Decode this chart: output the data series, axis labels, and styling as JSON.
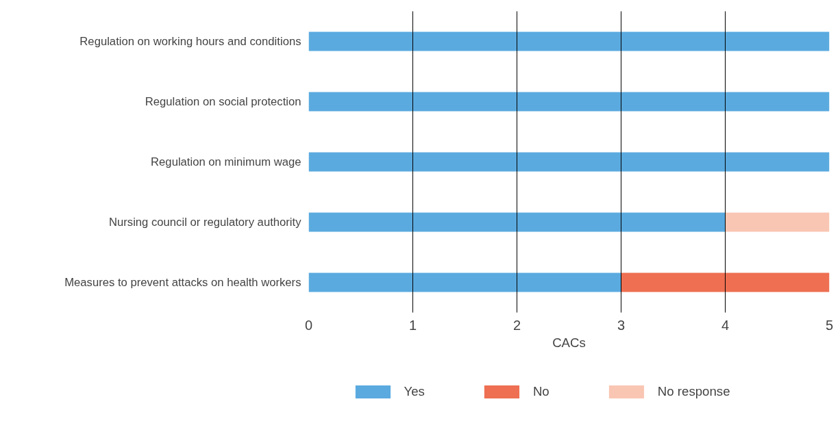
{
  "chart_data": {
    "type": "bar",
    "orientation": "horizontal",
    "stacked": true,
    "xlabel": "CACs",
    "categories": [
      "Regulation on working hours and conditions",
      "Regulation on social protection",
      "Regulation on minimum wage",
      "Nursing council or regulatory authority",
      "Measures to prevent attacks on health workers"
    ],
    "series": [
      {
        "name": "Yes",
        "color": "#5aaadf",
        "values": [
          5,
          5,
          5,
          4,
          3
        ]
      },
      {
        "name": "No",
        "color": "#ee6f52",
        "values": [
          0,
          0,
          0,
          0,
          2
        ]
      },
      {
        "name": "No response",
        "color": "#f9c6b3",
        "values": [
          0,
          0,
          0,
          1,
          0
        ]
      }
    ],
    "xlim": [
      0,
      5
    ],
    "xticks": [
      0,
      1,
      2,
      3,
      4,
      5
    ],
    "grid": "x",
    "legend": "bottom"
  }
}
